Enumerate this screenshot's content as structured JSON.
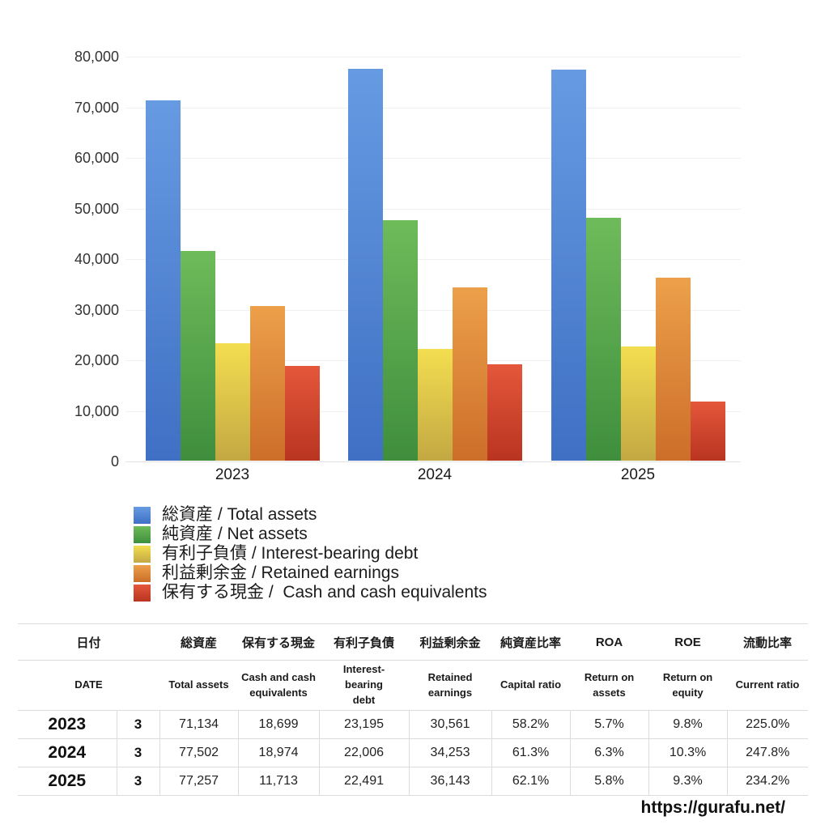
{
  "chart_data": {
    "type": "bar",
    "title": "",
    "xlabel": "",
    "ylabel": "",
    "ylim": [
      0,
      80000
    ],
    "ytick_step": 10000,
    "ytick_labels": [
      "80,000",
      "70,000",
      "60,000",
      "50,000",
      "40,000",
      "30,000",
      "20,000",
      "10,000",
      "0"
    ],
    "grid": true,
    "legend_position": "below-left",
    "categories": [
      "2023",
      "2024",
      "2025"
    ],
    "series": [
      {
        "key": "total-assets",
        "legend_label": "総資産 / Total assets",
        "color_top": "#669be2",
        "color_bottom": "#3f70c4",
        "values": [
          71134,
          77502,
          77257
        ]
      },
      {
        "key": "net-assets",
        "legend_label": "純資産 / Net assets",
        "color_top": "#6ebb5a",
        "color_bottom": "#3f8e3d",
        "values": [
          41400,
          47500,
          48000
        ]
      },
      {
        "key": "interest-bearing-debt",
        "legend_label": "有利子負債 / Interest-bearing debt",
        "color_top": "#f3de50",
        "color_bottom": "#c3a843",
        "values": [
          23195,
          22006,
          22491
        ]
      },
      {
        "key": "retained-earnings",
        "legend_label": "利益剰余金 / Retained earnings",
        "color_top": "#eda04a",
        "color_bottom": "#cc6e29",
        "values": [
          30561,
          34253,
          36143
        ]
      },
      {
        "key": "cash",
        "legend_label": "保有する現金 /  Cash and cash equivalents",
        "color_top": "#e4573b",
        "color_bottom": "#b93420",
        "values": [
          18699,
          18974,
          11713
        ]
      }
    ]
  },
  "table": {
    "header_ja": [
      "日付",
      "総資産",
      "保有する現金",
      "有利子負債",
      "利益剰余金",
      "純資産比率",
      "ROA",
      "ROE",
      "流動比率"
    ],
    "header_en": [
      "DATE",
      "Total assets",
      "Cash and cash equivalents",
      "Interest-bearing debt",
      "Retained earnings",
      "Capital ratio",
      "Return on assets",
      "Return on equity",
      "Current ratio"
    ],
    "rows": [
      {
        "year": "2023",
        "month": "3",
        "values": [
          "71,134",
          "18,699",
          "23,195",
          "30,561",
          "58.2%",
          "5.7%",
          "9.8%",
          "225.0%"
        ]
      },
      {
        "year": "2024",
        "month": "3",
        "values": [
          "77,502",
          "18,974",
          "22,006",
          "34,253",
          "61.3%",
          "6.3%",
          "10.3%",
          "247.8%"
        ]
      },
      {
        "year": "2025",
        "month": "3",
        "values": [
          "77,257",
          "11,713",
          "22,491",
          "36,143",
          "62.1%",
          "5.8%",
          "9.3%",
          "234.2%"
        ]
      }
    ]
  },
  "footer": {
    "url": "https://gurafu.net/"
  }
}
